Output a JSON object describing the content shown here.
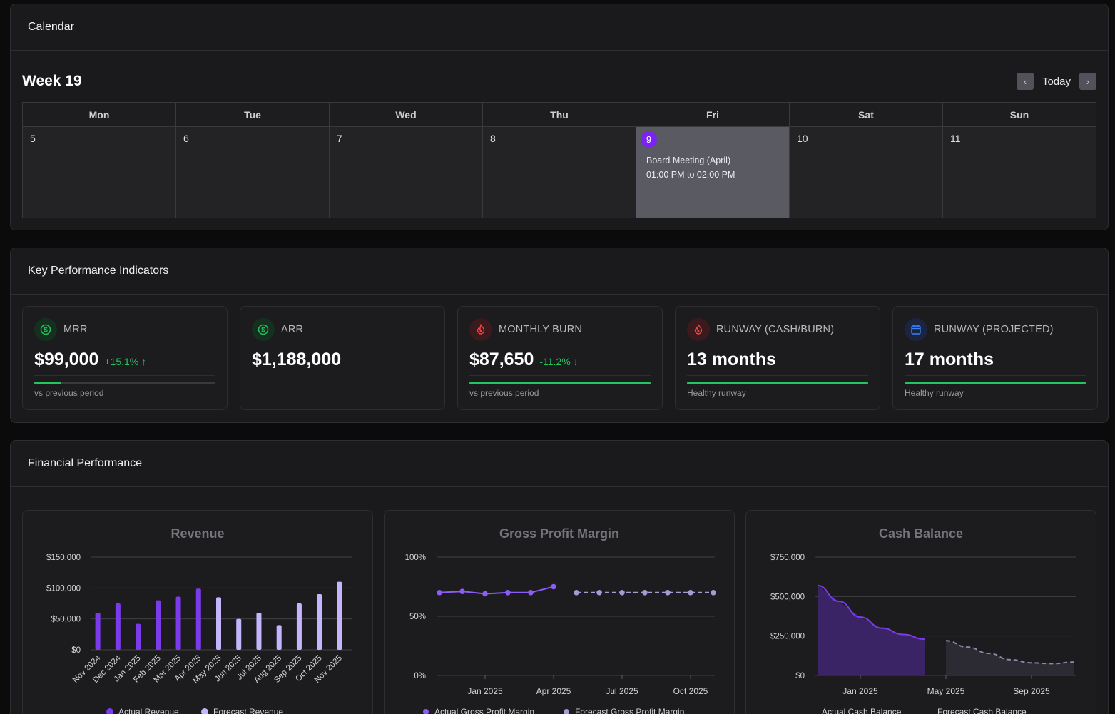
{
  "calendar": {
    "panel_title": "Calendar",
    "week_title": "Week 19",
    "today_label": "Today",
    "day_headers": [
      "Mon",
      "Tue",
      "Wed",
      "Thu",
      "Fri",
      "Sat",
      "Sun"
    ],
    "day_numbers": [
      "5",
      "6",
      "7",
      "8",
      "9",
      "10",
      "11"
    ],
    "event": {
      "title": "Board Meeting (April)",
      "time": "01:00 PM to 02:00 PM"
    }
  },
  "kpi": {
    "panel_title": "Key Performance Indicators",
    "cards": [
      {
        "label": "MRR",
        "value": "$99,000",
        "delta": "+15.1% ↑",
        "sub": "vs previous period",
        "progress": 0.15,
        "icon": "dollar-icon",
        "icon_color": "#22c55e",
        "icon_bg": "#15301f"
      },
      {
        "label": "ARR",
        "value": "$1,188,000",
        "icon": "dollar-icon",
        "icon_color": "#22c55e",
        "icon_bg": "#15301f"
      },
      {
        "label": "MONTHLY BURN",
        "value": "$87,650",
        "delta": "-11.2% ↓",
        "sub": "vs previous period",
        "progress": 1.0,
        "icon": "flame-icon",
        "icon_color": "#ef4444",
        "icon_bg": "#3a1a1c"
      },
      {
        "label": "RUNWAY (CASH/BURN)",
        "value": "13 months",
        "sub": "Healthy runway",
        "progress": 1.0,
        "icon": "flame-icon",
        "icon_color": "#ef4444",
        "icon_bg": "#3a1a1c"
      },
      {
        "label": "RUNWAY (PROJECTED)",
        "value": "17 months",
        "sub": "Healthy runway",
        "progress": 1.0,
        "icon": "calendar-icon",
        "icon_color": "#3b82f6",
        "icon_bg": "#1b2440"
      }
    ]
  },
  "financial": {
    "panel_title": "Financial Performance"
  },
  "chart_data": [
    {
      "type": "bar",
      "title": "Revenue",
      "categories": [
        "Nov 2024",
        "Dec 2024",
        "Jan 2025",
        "Feb 2025",
        "Mar 2025",
        "Apr 2025",
        "May 2025",
        "Jun 2025",
        "Jul 2025",
        "Aug 2025",
        "Sep 2025",
        "Oct 2025",
        "Nov 2025"
      ],
      "series": [
        {
          "name": "Actual Revenue",
          "color": "#7c3aed",
          "values": [
            60000,
            75000,
            42000,
            80000,
            86000,
            99000,
            null,
            null,
            null,
            null,
            null,
            null,
            null
          ]
        },
        {
          "name": "Forecast Revenue",
          "color": "#c4b5fd",
          "values": [
            null,
            null,
            null,
            null,
            null,
            null,
            85000,
            50000,
            60000,
            40000,
            75000,
            90000,
            110000
          ]
        }
      ],
      "y_ticks": [
        "$0",
        "$50,000",
        "$100,000",
        "$150,000"
      ],
      "ylim": [
        0,
        150000
      ],
      "legend": [
        "Actual Revenue",
        "Forecast Revenue"
      ]
    },
    {
      "type": "line",
      "title": "Gross Profit Margin",
      "x_ticks": [
        "Jan 2025",
        "Apr 2025",
        "Jul 2025",
        "Oct 2025"
      ],
      "series": [
        {
          "name": "Actual Gross Profit Margin",
          "color": "#8b5cf6",
          "dashed": false,
          "x": [
            0.0,
            1.0,
            2.0,
            3.0,
            4.0,
            5.0
          ],
          "values": [
            70,
            71,
            69,
            70,
            70,
            75
          ]
        },
        {
          "name": "Forecast Gross Profit Margin",
          "color": "#a79ad4",
          "dashed": true,
          "x": [
            6.0,
            7.0,
            8.0,
            9.0,
            10.0,
            11.0,
            12.0
          ],
          "values": [
            70,
            70,
            70,
            70,
            70,
            70,
            70
          ]
        }
      ],
      "y_ticks": [
        "0%",
        "50%",
        "100%"
      ],
      "ylim": [
        0,
        100
      ],
      "xlim": [
        0,
        12
      ],
      "legend": [
        "Actual Gross Profit Margin",
        "Forecast Gross Profit Margin"
      ]
    },
    {
      "type": "area",
      "title": "Cash Balance",
      "x_ticks": [
        "Jan 2025",
        "May 2025",
        "Sep 2025"
      ],
      "series": [
        {
          "name": "Actual Cash Balance",
          "color": "#7c3aed",
          "fill": "#3a2466",
          "dashed": false,
          "x": [
            0,
            1,
            2,
            3,
            4,
            5
          ],
          "values": [
            570000,
            470000,
            370000,
            300000,
            260000,
            230000
          ]
        },
        {
          "name": "Forecast Cash Balance",
          "color": "#8e86a8",
          "fill": "#2c2a33",
          "dashed": true,
          "x": [
            6,
            7,
            8,
            9,
            10,
            11,
            12
          ],
          "values": [
            220000,
            180000,
            140000,
            100000,
            80000,
            75000,
            85000
          ]
        }
      ],
      "y_ticks": [
        "$0",
        "$250,000",
        "$500,000",
        "$750,000"
      ],
      "ylim": [
        0,
        750000
      ],
      "xlim": [
        0,
        12
      ],
      "legend": [
        "Actual Cash Balance",
        "Forecast Cash Balance"
      ]
    }
  ]
}
